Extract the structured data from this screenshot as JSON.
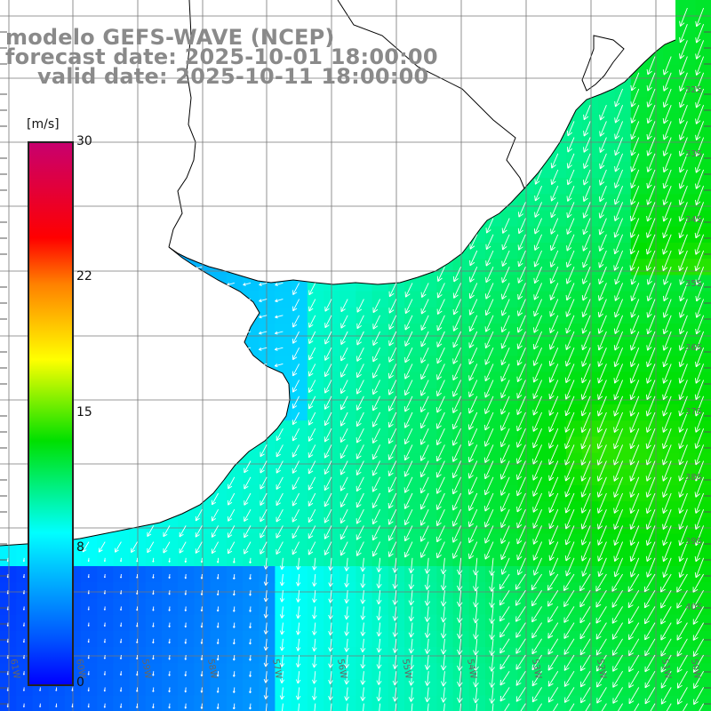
{
  "title": {
    "line1": "modelo GEFS-WAVE (NCEP)",
    "line2": "forecast date: 2025-10-01 18:00:00",
    "line3": "valid date: 2025-10-11 18:00:00"
  },
  "colorbar": {
    "unit": "[m/s]",
    "ticks": [
      "30",
      "22",
      "15",
      "8",
      "0"
    ],
    "min": 0,
    "max": 30
  },
  "map": {
    "field": "wind speed",
    "palette": [
      "#0000ff",
      "#00c8ff",
      "#00ffff",
      "#00e000",
      "#ffff00",
      "#ff8000",
      "#ff0000",
      "#c8006e"
    ],
    "land_color": "#ffffff",
    "coast_color": "#000000",
    "grid": true,
    "lat_labels": [
      "32S",
      "33S",
      "34S",
      "35S",
      "36S",
      "37S",
      "38S",
      "39S",
      "40S"
    ],
    "lon_labels": [
      "61W",
      "60W",
      "59W",
      "58W",
      "57W",
      "56W",
      "55W",
      "54W",
      "53W",
      "52W",
      "51W",
      "50W"
    ]
  }
}
